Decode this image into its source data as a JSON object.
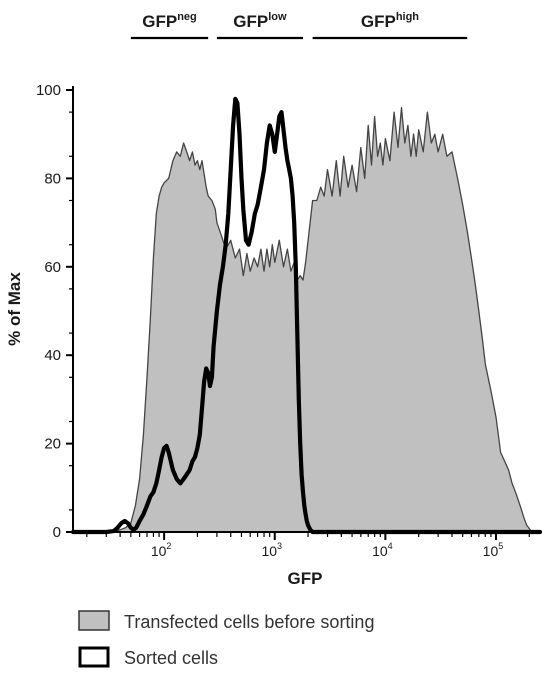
{
  "chart_data": {
    "type": "area",
    "xlabel": "GFP",
    "ylabel": "% of Max",
    "x_scale": "log",
    "xlim": [
      15,
      250000
    ],
    "ylim": [
      0,
      100
    ],
    "y_ticks": [
      0,
      20,
      40,
      60,
      80,
      100
    ],
    "x_major_ticks": [
      {
        "value": 100,
        "base": "10",
        "exp": "2"
      },
      {
        "value": 1000,
        "base": "10",
        "exp": "3"
      },
      {
        "value": 10000,
        "base": "10",
        "exp": "4"
      },
      {
        "value": 100000,
        "base": "10",
        "exp": "5"
      }
    ],
    "gates": [
      {
        "base": "GFP",
        "sup": "neg",
        "range": [
          50,
          250
        ]
      },
      {
        "base": "GFP",
        "sup": "low",
        "range": [
          300,
          1800
        ]
      },
      {
        "base": "GFP",
        "sup": "high",
        "range": [
          2200,
          55000
        ]
      }
    ],
    "legend": {
      "position": "bottom-left",
      "items": [
        {
          "label": "Transfected cells before sorting",
          "style": "filled",
          "fill": "#c0c0c0",
          "stroke": "#333333"
        },
        {
          "label": "Sorted cells",
          "style": "outline",
          "fill": "#ffffff",
          "stroke": "#000000"
        }
      ]
    },
    "series": [
      {
        "name": "Transfected cells before sorting",
        "color": "#c0c0c0",
        "edge_color": "#444444",
        "points": [
          [
            15,
            0
          ],
          [
            35,
            0
          ],
          [
            40,
            0.5
          ],
          [
            45,
            1
          ],
          [
            50,
            2
          ],
          [
            55,
            6
          ],
          [
            60,
            12
          ],
          [
            65,
            22
          ],
          [
            70,
            35
          ],
          [
            75,
            48
          ],
          [
            80,
            62
          ],
          [
            85,
            72
          ],
          [
            90,
            76
          ],
          [
            95,
            78
          ],
          [
            100,
            79
          ],
          [
            110,
            80
          ],
          [
            120,
            84
          ],
          [
            130,
            86
          ],
          [
            140,
            85
          ],
          [
            150,
            88
          ],
          [
            160,
            86
          ],
          [
            170,
            84
          ],
          [
            180,
            86
          ],
          [
            190,
            83
          ],
          [
            200,
            84
          ],
          [
            210,
            82
          ],
          [
            220,
            84
          ],
          [
            230,
            81
          ],
          [
            240,
            78
          ],
          [
            250,
            76
          ],
          [
            270,
            75
          ],
          [
            290,
            73
          ],
          [
            300,
            70
          ],
          [
            330,
            67
          ],
          [
            360,
            64
          ],
          [
            400,
            66
          ],
          [
            440,
            62
          ],
          [
            480,
            64
          ],
          [
            520,
            58
          ],
          [
            560,
            63
          ],
          [
            600,
            59
          ],
          [
            650,
            62
          ],
          [
            700,
            60
          ],
          [
            750,
            64
          ],
          [
            800,
            59
          ],
          [
            850,
            64
          ],
          [
            900,
            60
          ],
          [
            950,
            65
          ],
          [
            1000,
            61
          ],
          [
            1100,
            66
          ],
          [
            1200,
            60
          ],
          [
            1300,
            64
          ],
          [
            1400,
            59
          ],
          [
            1500,
            61
          ],
          [
            1600,
            57
          ],
          [
            1700,
            58
          ],
          [
            1800,
            57
          ],
          [
            1900,
            61
          ],
          [
            2000,
            66
          ],
          [
            2200,
            75
          ],
          [
            2400,
            75
          ],
          [
            2600,
            78
          ],
          [
            2800,
            76
          ],
          [
            3000,
            82
          ],
          [
            3300,
            76
          ],
          [
            3600,
            84
          ],
          [
            3900,
            76
          ],
          [
            4200,
            85
          ],
          [
            4600,
            78
          ],
          [
            5000,
            83
          ],
          [
            5500,
            77
          ],
          [
            6000,
            87
          ],
          [
            6500,
            80
          ],
          [
            7000,
            92
          ],
          [
            7500,
            83
          ],
          [
            8000,
            94
          ],
          [
            8500,
            85
          ],
          [
            9000,
            88
          ],
          [
            9500,
            83
          ],
          [
            10000,
            89
          ],
          [
            11000,
            84
          ],
          [
            12000,
            95
          ],
          [
            13000,
            87
          ],
          [
            14000,
            96
          ],
          [
            15000,
            88
          ],
          [
            16000,
            92
          ],
          [
            17000,
            85
          ],
          [
            18000,
            90
          ],
          [
            19000,
            85
          ],
          [
            20000,
            91
          ],
          [
            22000,
            86
          ],
          [
            24000,
            95
          ],
          [
            26000,
            88
          ],
          [
            28000,
            90
          ],
          [
            30000,
            86
          ],
          [
            33000,
            90
          ],
          [
            36000,
            85
          ],
          [
            40000,
            86
          ],
          [
            45000,
            80
          ],
          [
            50000,
            74
          ],
          [
            55000,
            68
          ],
          [
            60000,
            62
          ],
          [
            65000,
            56
          ],
          [
            70000,
            50
          ],
          [
            75000,
            44
          ],
          [
            80000,
            38
          ],
          [
            90000,
            32
          ],
          [
            100000,
            26
          ],
          [
            110000,
            18
          ],
          [
            120000,
            16
          ],
          [
            130000,
            14
          ],
          [
            140000,
            11
          ],
          [
            150000,
            9
          ],
          [
            160000,
            7
          ],
          [
            170000,
            5
          ],
          [
            180000,
            3
          ],
          [
            190000,
            1.5
          ],
          [
            200000,
            0.8
          ],
          [
            210000,
            0
          ]
        ]
      },
      {
        "name": "Sorted cells",
        "color": "#000000",
        "points": [
          [
            15,
            0
          ],
          [
            30,
            0
          ],
          [
            35,
            0.2
          ],
          [
            38,
            1
          ],
          [
            41,
            2
          ],
          [
            44,
            2.5
          ],
          [
            47,
            2
          ],
          [
            50,
            1
          ],
          [
            53,
            0.5
          ],
          [
            56,
            1
          ],
          [
            60,
            2.5
          ],
          [
            65,
            4
          ],
          [
            70,
            6
          ],
          [
            75,
            8
          ],
          [
            80,
            9
          ],
          [
            85,
            11
          ],
          [
            90,
            14
          ],
          [
            95,
            17
          ],
          [
            100,
            19
          ],
          [
            105,
            19.5
          ],
          [
            110,
            18
          ],
          [
            120,
            14
          ],
          [
            130,
            12
          ],
          [
            140,
            11
          ],
          [
            150,
            12
          ],
          [
            160,
            13
          ],
          [
            170,
            14
          ],
          [
            180,
            16
          ],
          [
            190,
            17
          ],
          [
            200,
            19
          ],
          [
            210,
            22
          ],
          [
            220,
            28
          ],
          [
            230,
            34
          ],
          [
            240,
            37
          ],
          [
            250,
            36
          ],
          [
            260,
            33
          ],
          [
            270,
            35
          ],
          [
            280,
            42
          ],
          [
            300,
            50
          ],
          [
            320,
            56
          ],
          [
            340,
            60
          ],
          [
            360,
            65
          ],
          [
            380,
            72
          ],
          [
            400,
            82
          ],
          [
            420,
            92
          ],
          [
            440,
            98
          ],
          [
            460,
            97
          ],
          [
            480,
            90
          ],
          [
            500,
            80
          ],
          [
            520,
            73
          ],
          [
            550,
            66
          ],
          [
            580,
            65
          ],
          [
            620,
            68
          ],
          [
            660,
            72
          ],
          [
            700,
            74
          ],
          [
            750,
            78
          ],
          [
            800,
            82
          ],
          [
            850,
            88
          ],
          [
            900,
            92
          ],
          [
            950,
            90
          ],
          [
            1000,
            86
          ],
          [
            1050,
            90
          ],
          [
            1100,
            94
          ],
          [
            1150,
            95
          ],
          [
            1200,
            91
          ],
          [
            1250,
            87
          ],
          [
            1300,
            84
          ],
          [
            1350,
            82
          ],
          [
            1400,
            80
          ],
          [
            1450,
            76
          ],
          [
            1500,
            70
          ],
          [
            1550,
            60
          ],
          [
            1600,
            45
          ],
          [
            1650,
            30
          ],
          [
            1700,
            20
          ],
          [
            1750,
            13
          ],
          [
            1800,
            9
          ],
          [
            1850,
            6
          ],
          [
            1900,
            4
          ],
          [
            1950,
            2.5
          ],
          [
            2000,
            1.5
          ],
          [
            2100,
            0.5
          ],
          [
            2200,
            0
          ],
          [
            250000,
            0
          ]
        ]
      }
    ]
  }
}
